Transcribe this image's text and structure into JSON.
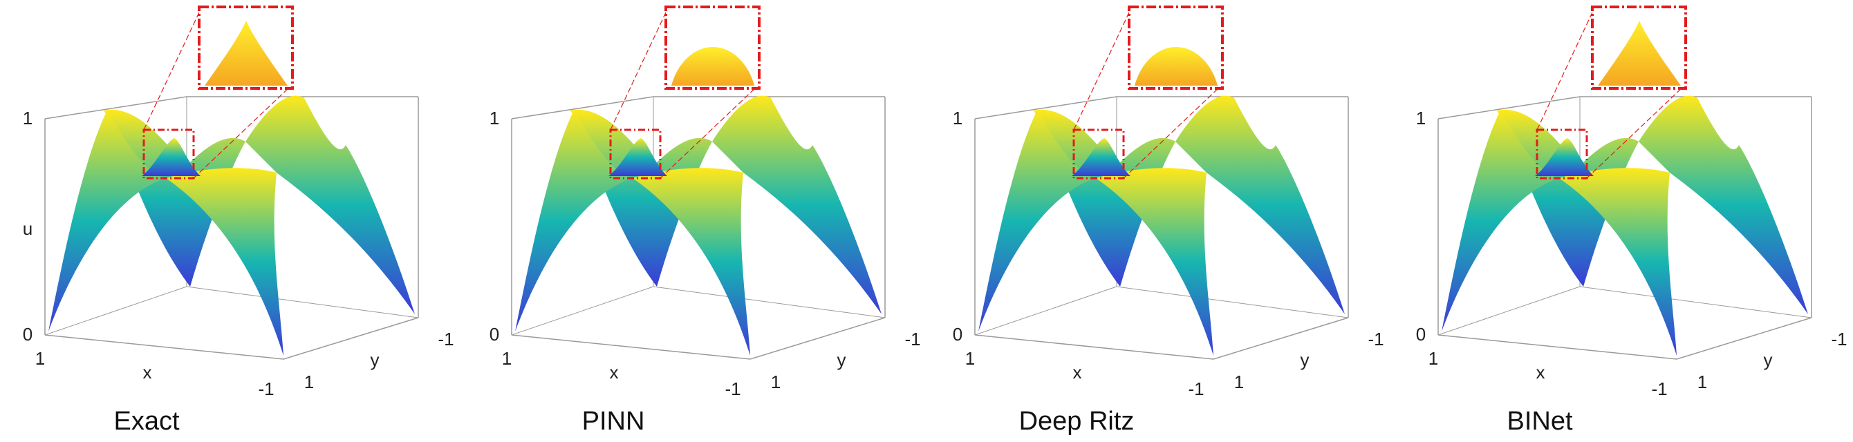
{
  "colors": {
    "low": "#3b3bd6",
    "mid": "#17b6b0",
    "high": "#ffe81a",
    "highlight_box": "#e41a1c",
    "axes": "#9a9a9a"
  },
  "axis_text": {
    "z_max": "1",
    "z_min": "0",
    "z_label": "u",
    "x_label": "x",
    "x_left": "1",
    "x_right": "-1",
    "y_label": "y",
    "y_front": "1",
    "y_back": "-1"
  },
  "panels": [
    {
      "title": "Exact",
      "show_z_label": true,
      "zoom_shape": "peak"
    },
    {
      "title": "PINN",
      "show_z_label": false,
      "zoom_shape": "dome"
    },
    {
      "title": "Deep Ritz",
      "show_z_label": false,
      "zoom_shape": "dome"
    },
    {
      "title": "BINet",
      "show_z_label": false,
      "zoom_shape": "peak"
    }
  ]
}
